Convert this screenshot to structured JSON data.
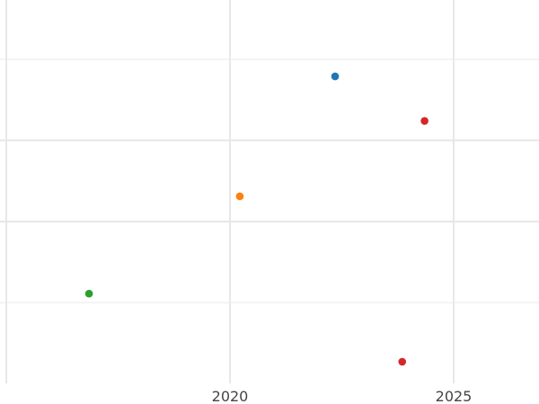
{
  "chart_data": {
    "type": "scatter",
    "title": "",
    "xlabel": "",
    "ylabel": "",
    "xlim": [
      2015,
      2026.9
    ],
    "ylim": [
      0,
      4.73
    ],
    "grid": true,
    "x_ticks": [
      "2020",
      "2025"
    ],
    "x_tick_values": [
      2020,
      2025
    ],
    "x_minor_gridlines": [
      2015
    ],
    "y_gridlines": [
      1,
      2,
      3,
      4
    ],
    "points": [
      {
        "x": 2022.35,
        "y": 3.79,
        "color": "#1f77b4"
      },
      {
        "x": 2024.35,
        "y": 3.24,
        "color": "#d62728"
      },
      {
        "x": 2020.22,
        "y": 2.31,
        "color": "#ff7f0e"
      },
      {
        "x": 2016.85,
        "y": 1.11,
        "color": "#2ca02c"
      },
      {
        "x": 2023.85,
        "y": 0.27,
        "color": "#d62728"
      }
    ]
  }
}
